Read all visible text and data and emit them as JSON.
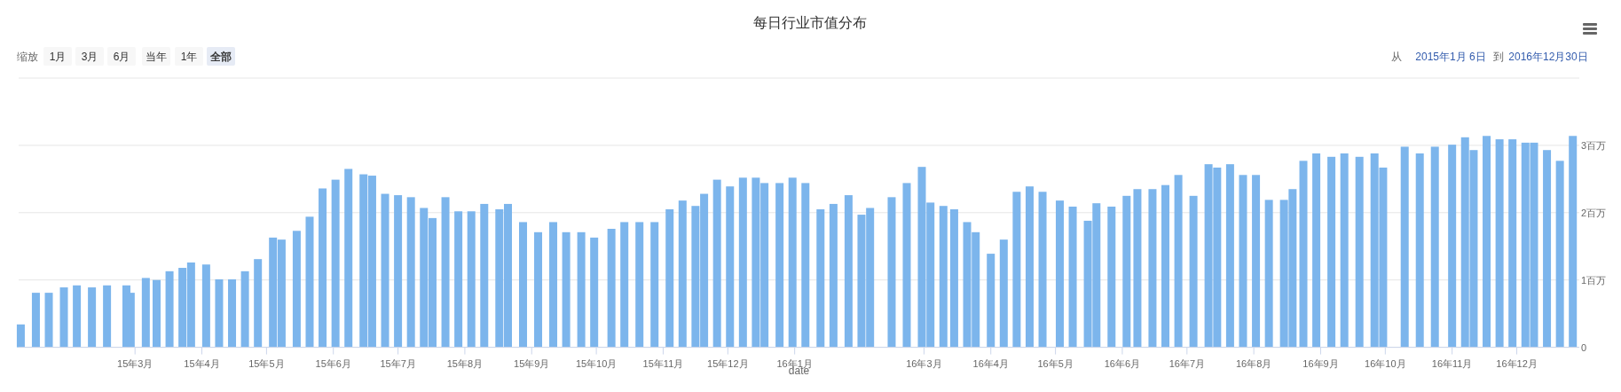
{
  "chart_data": {
    "type": "bar",
    "title": "每日行业市值分布",
    "xlabel": "date",
    "annotations": [
      "缩放",
      "1月",
      "3月",
      "6月",
      "当年",
      "1年",
      "全部",
      "从",
      "2015年1月 6日",
      "到",
      "2016年12月30日"
    ],
    "x": [
      "2015-01-07",
      "2015-01-14",
      "2015-01-20",
      "2015-01-27",
      "2015-02-02",
      "2015-02-09",
      "2015-02-16",
      "2015-02-25",
      "2015-02-27",
      "2015-03-06",
      "2015-03-11",
      "2015-03-17",
      "2015-03-23",
      "2015-03-27",
      "2015-04-03",
      "2015-04-09",
      "2015-04-15",
      "2015-04-21",
      "2015-04-27",
      "2015-05-04",
      "2015-05-08",
      "2015-05-15",
      "2015-05-21",
      "2015-05-27",
      "2015-06-02",
      "2015-06-08",
      "2015-06-15",
      "2015-06-19",
      "2015-06-25",
      "2015-07-01",
      "2015-07-07",
      "2015-07-13",
      "2015-07-17",
      "2015-07-23",
      "2015-07-29",
      "2015-08-04",
      "2015-08-10",
      "2015-08-17",
      "2015-08-21",
      "2015-08-28",
      "2015-09-04",
      "2015-09-11",
      "2015-09-17",
      "2015-09-24",
      "2015-09-30",
      "2015-10-08",
      "2015-10-14",
      "2015-10-21",
      "2015-10-28",
      "2015-11-04",
      "2015-11-10",
      "2015-11-16",
      "2015-11-20",
      "2015-11-26",
      "2015-12-02",
      "2015-12-08",
      "2015-12-14",
      "2015-12-18",
      "2015-12-25",
      "2015-12-31",
      "2016-01-06",
      "2016-01-13",
      "2016-01-19",
      "2016-01-26",
      "2016-02-01",
      "2016-02-05",
      "2016-02-15",
      "2016-02-22",
      "2016-02-29",
      "2016-03-04",
      "2016-03-10",
      "2016-03-15",
      "2016-03-21",
      "2016-03-25",
      "2016-04-01",
      "2016-04-07",
      "2016-04-13",
      "2016-04-19",
      "2016-04-25",
      "2016-05-03",
      "2016-05-09",
      "2016-05-16",
      "2016-05-20",
      "2016-05-27",
      "2016-06-03",
      "2016-06-08",
      "2016-06-15",
      "2016-06-21",
      "2016-06-27",
      "2016-07-04",
      "2016-07-11",
      "2016-07-15",
      "2016-07-21",
      "2016-07-27",
      "2016-08-02",
      "2016-08-08",
      "2016-08-15",
      "2016-08-19",
      "2016-08-24",
      "2016-08-30",
      "2016-09-06",
      "2016-09-12",
      "2016-09-19",
      "2016-09-26",
      "2016-09-30",
      "2016-10-10",
      "2016-10-17",
      "2016-10-24",
      "2016-11-01",
      "2016-11-07",
      "2016-11-11",
      "2016-11-17",
      "2016-11-23",
      "2016-11-29",
      "2016-12-05",
      "2016-12-09",
      "2016-12-15",
      "2016-12-21",
      "2016-12-27"
    ],
    "values": [
      0.34,
      0.81,
      0.81,
      0.89,
      0.92,
      0.89,
      0.92,
      0.92,
      0.81,
      1.03,
      1.0,
      1.13,
      1.18,
      1.26,
      1.23,
      1.01,
      1.01,
      1.13,
      1.31,
      1.63,
      1.6,
      1.73,
      1.94,
      2.36,
      2.49,
      2.65,
      2.57,
      2.55,
      2.28,
      2.26,
      2.23,
      2.07,
      1.92,
      2.23,
      2.02,
      2.02,
      2.13,
      2.05,
      2.13,
      1.86,
      1.71,
      1.86,
      1.71,
      1.71,
      1.63,
      1.76,
      1.86,
      1.86,
      1.86,
      2.05,
      2.18,
      2.1,
      2.28,
      2.49,
      2.39,
      2.52,
      2.52,
      2.44,
      2.44,
      2.52,
      2.44,
      2.05,
      2.13,
      2.26,
      1.97,
      2.07,
      2.23,
      2.44,
      2.68,
      2.15,
      2.1,
      2.05,
      1.86,
      1.71,
      1.39,
      1.6,
      2.31,
      2.39,
      2.31,
      2.18,
      2.09,
      1.88,
      2.14,
      2.09,
      2.25,
      2.35,
      2.35,
      2.41,
      2.56,
      2.25,
      2.72,
      2.67,
      2.72,
      2.56,
      2.56,
      2.19,
      2.19,
      2.35,
      2.77,
      2.88,
      2.83,
      2.88,
      2.83,
      2.88,
      2.67,
      2.98,
      2.88,
      2.98,
      3.01,
      3.12,
      2.93,
      3.14,
      3.09,
      3.09,
      3.04,
      3.04,
      2.93,
      2.77,
      3.14
    ],
    "color": "#7cb5ec",
    "xticks": [
      {
        "value": "2015-03-01",
        "label": "15年3月"
      },
      {
        "value": "2015-04-01",
        "label": "15年4月"
      },
      {
        "value": "2015-05-01",
        "label": "15年5月"
      },
      {
        "value": "2015-06-01",
        "label": "15年6月"
      },
      {
        "value": "2015-07-01",
        "label": "15年7月"
      },
      {
        "value": "2015-08-01",
        "label": "15年8月"
      },
      {
        "value": "2015-09-01",
        "label": "15年9月"
      },
      {
        "value": "2015-10-01",
        "label": "15年10月"
      },
      {
        "value": "2015-11-01",
        "label": "15年11月"
      },
      {
        "value": "2015-12-01",
        "label": "15年12月"
      },
      {
        "value": "2016-01-01",
        "label": "16年1月"
      },
      {
        "value": "2016-03-01",
        "label": "16年3月"
      },
      {
        "value": "2016-04-01",
        "label": "16年4月"
      },
      {
        "value": "2016-05-01",
        "label": "16年5月"
      },
      {
        "value": "2016-06-01",
        "label": "16年6月"
      },
      {
        "value": "2016-07-01",
        "label": "16年7月"
      },
      {
        "value": "2016-08-01",
        "label": "16年8月"
      },
      {
        "value": "2016-09-01",
        "label": "16年9月"
      },
      {
        "value": "2016-10-01",
        "label": "16年10月"
      },
      {
        "value": "2016-11-01",
        "label": "16年11月"
      },
      {
        "value": "2016-12-01",
        "label": "16年12月"
      }
    ],
    "xlim": [
      "2015-01-06",
      "2016-12-30"
    ],
    "ylim": [
      0,
      4
    ],
    "yticks": [
      0,
      {
        "value": 1,
        "label": "1百万"
      },
      {
        "value": 2,
        "label": "2百万"
      },
      {
        "value": 3,
        "label": "3百万"
      },
      {
        "value": 4,
        "label": null
      }
    ],
    "grid": "y"
  }
}
